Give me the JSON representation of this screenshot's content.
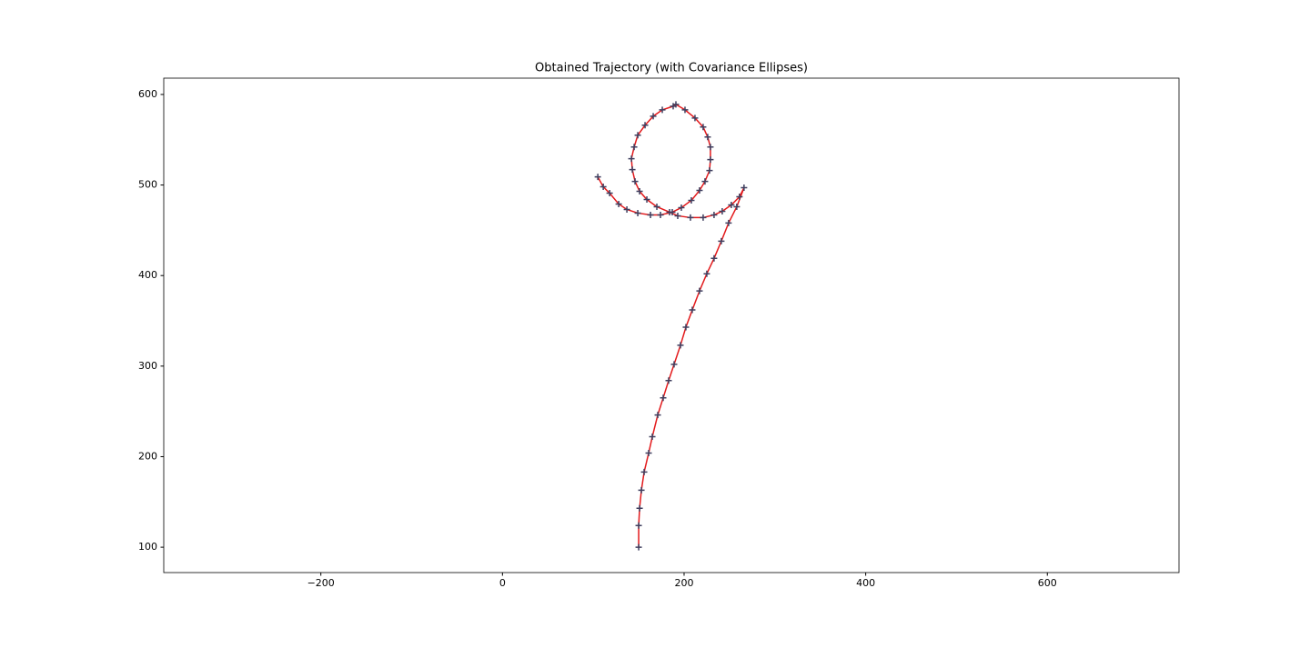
{
  "chart_data": {
    "type": "line",
    "title": "Obtained Trajectory (with Covariance Ellipses)",
    "x": [
      150,
      150,
      151,
      153,
      156,
      161,
      165,
      171,
      177,
      183,
      189,
      196,
      202,
      209,
      217,
      225,
      233,
      241,
      249,
      258,
      266,
      261,
      252,
      242,
      233,
      221,
      207,
      193,
      184,
      170,
      159,
      151,
      146,
      143,
      142,
      145,
      149,
      157,
      166,
      176,
      188,
      191,
      201,
      212,
      221,
      226,
      229,
      229,
      228,
      223,
      217,
      208,
      197,
      187,
      174,
      163,
      149,
      137,
      128,
      118,
      111,
      105
    ],
    "values": [
      100,
      124,
      143,
      163,
      183,
      204,
      222,
      246,
      265,
      284,
      302,
      323,
      343,
      362,
      383,
      402,
      419,
      438,
      458,
      476,
      497,
      487,
      478,
      471,
      467,
      464,
      464,
      466,
      470,
      476,
      484,
      493,
      504,
      517,
      529,
      542,
      555,
      566,
      576,
      583,
      587,
      589,
      583,
      574,
      564,
      553,
      542,
      528,
      516,
      504,
      494,
      483,
      475,
      470,
      467,
      467,
      469,
      473,
      479,
      491,
      498,
      509
    ],
    "line_color": "#e31a1c",
    "marker_color": "#3f3f5f",
    "marker": "+",
    "xlim": [
      -373,
      745
    ],
    "ylim": [
      72,
      618
    ],
    "xticks": [
      {
        "value": -200,
        "label": "−200"
      },
      0,
      200,
      400,
      600
    ],
    "yticks": [
      100,
      200,
      300,
      400,
      500,
      600
    ],
    "grid": false
  }
}
